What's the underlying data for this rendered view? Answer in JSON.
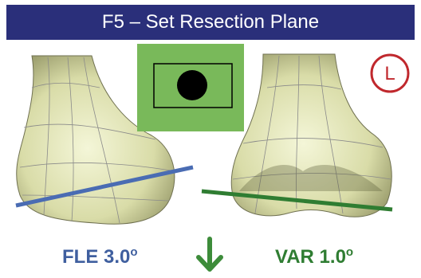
{
  "header": {
    "title": "F5 – Set Resection Plane"
  },
  "badge": {
    "label": "L"
  },
  "readouts": {
    "left": {
      "text": "FLE 3.0",
      "unit": "o"
    },
    "right": {
      "text": "VAR 1.0",
      "unit": "o"
    }
  }
}
